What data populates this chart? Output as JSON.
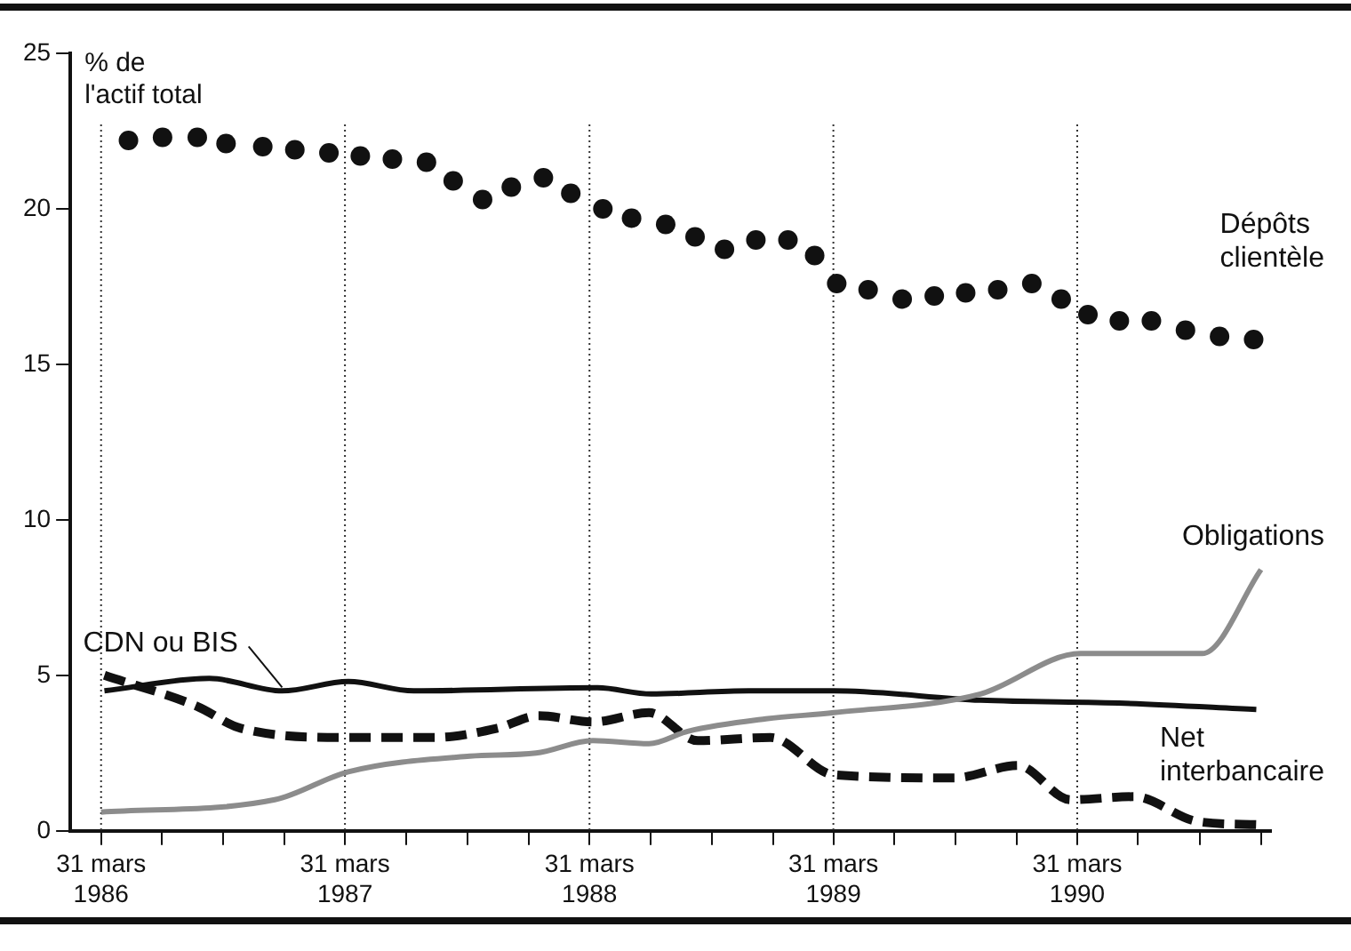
{
  "chart_data": {
    "type": "line",
    "ylabel": "% de l'actif total",
    "xlim": [
      "1986-02-13",
      "1991-01-15"
    ],
    "ylim": [
      0,
      25
    ],
    "yticks": [
      0,
      5,
      10,
      15,
      20,
      25
    ],
    "xticks": [
      {
        "value": "1986-03-31",
        "label": "31 mars 1986"
      },
      {
        "value": "1986-06-30",
        "label": null
      },
      {
        "value": "1986-09-30",
        "label": null
      },
      {
        "value": "1986-12-31",
        "label": null
      },
      {
        "value": "1987-03-31",
        "label": "31 mars 1987"
      },
      {
        "value": "1987-06-30",
        "label": null
      },
      {
        "value": "1987-09-30",
        "label": null
      },
      {
        "value": "1987-12-31",
        "label": null
      },
      {
        "value": "1988-03-31",
        "label": "31 mars 1988"
      },
      {
        "value": "1988-06-30",
        "label": null
      },
      {
        "value": "1988-09-30",
        "label": null
      },
      {
        "value": "1988-12-31",
        "label": null
      },
      {
        "value": "1989-03-31",
        "label": "31 mars 1989"
      },
      {
        "value": "1989-06-30",
        "label": null
      },
      {
        "value": "1989-09-30",
        "label": null
      },
      {
        "value": "1989-12-31",
        "label": null
      },
      {
        "value": "1990-03-31",
        "label": "31 mars 1990"
      },
      {
        "value": "1990-06-30",
        "label": null
      },
      {
        "value": "1990-09-30",
        "label": null
      },
      {
        "value": "1990-12-31",
        "label": null
      }
    ],
    "grid": "x",
    "legend": false,
    "series": [
      {
        "name": "Dépôts clientèle",
        "type": "scatter",
        "marker": "circle",
        "color": "#111111",
        "x": [
          "1986-05-11",
          "1986-07-01",
          "1986-08-22",
          "1986-10-04",
          "1986-11-28",
          "1987-01-15",
          "1987-03-07",
          "1987-04-23",
          "1987-06-10",
          "1987-07-31",
          "1987-09-09",
          "1987-10-23",
          "1987-12-05",
          "1988-01-22",
          "1988-03-03",
          "1988-04-20",
          "1988-06-02",
          "1988-07-23",
          "1988-09-05",
          "1988-10-19",
          "1988-12-05",
          "1989-01-22",
          "1989-03-03",
          "1989-04-05",
          "1989-05-22",
          "1989-07-12",
          "1989-08-29",
          "1989-10-15",
          "1989-12-02",
          "1990-01-22",
          "1990-03-07",
          "1990-04-16",
          "1990-06-02",
          "1990-07-20",
          "1990-09-09",
          "1990-10-30",
          "1990-12-20"
        ],
        "values": [
          22.2,
          22.3,
          22.3,
          22.1,
          22.0,
          21.9,
          21.8,
          21.7,
          21.6,
          21.5,
          20.9,
          20.3,
          20.7,
          21.0,
          20.5,
          20.0,
          19.7,
          19.5,
          19.1,
          18.7,
          19.0,
          19.0,
          18.5,
          17.6,
          17.4,
          17.1,
          17.2,
          17.3,
          17.4,
          17.6,
          17.1,
          16.6,
          16.4,
          16.4,
          16.1,
          15.9,
          15.8
        ]
      },
      {
        "name": "Obligations",
        "line_style": "solid",
        "color": "#8c8c8c",
        "x": [
          "1986-03-31",
          "1986-12-16",
          "1987-04-05",
          "1987-10-04",
          "1988-01-11",
          "1988-04-05",
          "1988-06-28",
          "1988-08-25",
          "1988-12-20",
          "1989-04-01",
          "1989-11-06",
          "1990-04-05",
          "1990-10-04",
          "1990-12-31"
        ],
        "values": [
          0.6,
          1.0,
          1.9,
          2.4,
          2.5,
          2.9,
          2.8,
          3.2,
          3.6,
          3.8,
          4.4,
          5.7,
          5.7,
          8.4
        ]
      },
      {
        "name": "CDN ou BIS",
        "line_style": "solid",
        "color": "#111111",
        "x": [
          "1986-04-05",
          "1986-09-09",
          "1986-12-27",
          "1987-04-05",
          "1987-07-12",
          "1988-04-12",
          "1988-07-01",
          "1988-11-24",
          "1989-04-01",
          "1989-11-06",
          "1990-06-10",
          "1990-12-24"
        ],
        "values": [
          4.5,
          4.9,
          4.5,
          4.8,
          4.5,
          4.6,
          4.4,
          4.5,
          4.5,
          4.2,
          4.1,
          3.9
        ]
      },
      {
        "name": "Net interbancaire",
        "line_style": "dashed",
        "color": "#111111",
        "x": [
          "1986-04-05",
          "1986-08-22",
          "1986-10-26",
          "1987-04-05",
          "1987-08-11",
          "1987-11-14",
          "1988-01-15",
          "1988-04-05",
          "1988-06-28",
          "1988-09-09",
          "1988-12-27",
          "1989-04-01",
          "1989-09-27",
          "1990-01-01",
          "1990-03-21",
          "1990-06-24",
          "1990-09-27",
          "1990-12-27"
        ],
        "values": [
          5.0,
          4.0,
          3.3,
          3.0,
          3.0,
          3.3,
          3.7,
          3.5,
          3.8,
          2.9,
          3.0,
          1.8,
          1.7,
          2.1,
          1.0,
          1.1,
          0.3,
          0.2
        ]
      }
    ]
  }
}
